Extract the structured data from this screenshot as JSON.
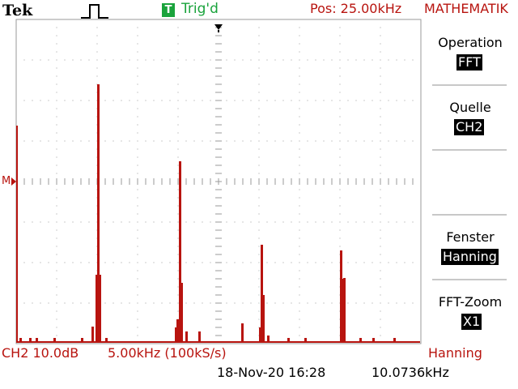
{
  "header": {
    "brand": "Tek",
    "trigger_badge": "T",
    "trigger_status": "Trig'd",
    "position": "Pos: 25.00kHz",
    "menu_name": "MATHEMATIK"
  },
  "menu": [
    {
      "title": "Operation",
      "value": "FFT"
    },
    {
      "title": "Quelle",
      "value": "CH2"
    },
    {
      "title": "Fenster",
      "value": "Hanning"
    },
    {
      "title": "FFT-Zoom",
      "value": "X1"
    }
  ],
  "footer": {
    "channel_scale": "CH2 10.0dB",
    "freq_scale": "5.00kHz (100kS/s)",
    "window": "Hanning",
    "datetime": "18-Nov-20 16:28",
    "frequency": "10.0736kHz"
  },
  "markers": {
    "math_marker": "M"
  },
  "colors": {
    "trace": "#b8140f",
    "trigger": "#1aa33c",
    "grid": "#9a9a9a"
  }
}
